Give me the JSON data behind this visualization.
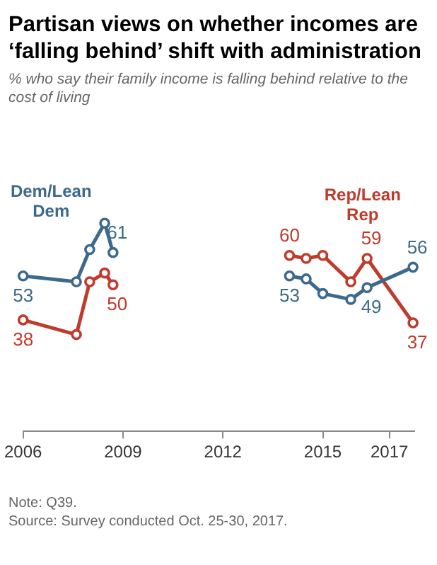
{
  "chart_data": {
    "type": "line",
    "title": "Partisan views on whether incomes are ‘falling behind’ shift with administration",
    "subtitle": "% who say their family income is falling behind relative to the cost of living",
    "x": [
      2006,
      2007.6,
      2008,
      2008.45,
      2008.7,
      2011,
      2014,
      2014.5,
      2015,
      2015.84,
      2016.33,
      2017.71
    ],
    "series": [
      {
        "name": "Dem/Lean Dem",
        "color": "#3d6a8c",
        "values": [
          53,
          51,
          62,
          71,
          61,
          null,
          53,
          52,
          47,
          45,
          49,
          56
        ],
        "value_labels": [
          "53",
          null,
          null,
          null,
          "61",
          null,
          "53",
          null,
          null,
          null,
          "49",
          "56"
        ]
      },
      {
        "name": "Rep/Lean Rep",
        "color": "#bf3b2c",
        "values": [
          38,
          33,
          51,
          54,
          50,
          null,
          60,
          59,
          60,
          51,
          59,
          37
        ],
        "value_labels": [
          "38",
          null,
          null,
          null,
          "50",
          null,
          "60",
          null,
          null,
          null,
          "59",
          "37"
        ]
      }
    ],
    "xlim": [
      2006,
      2017.75
    ],
    "xticks": [
      2006,
      2009,
      2012,
      2015,
      2017
    ],
    "grid": false,
    "legend": false,
    "marker": "circle",
    "line_style": "solid",
    "tick_labels": "x",
    "annotations": [
      "Note: Q39.",
      "Source: Survey conducted Oct. 25-30, 2017."
    ]
  }
}
